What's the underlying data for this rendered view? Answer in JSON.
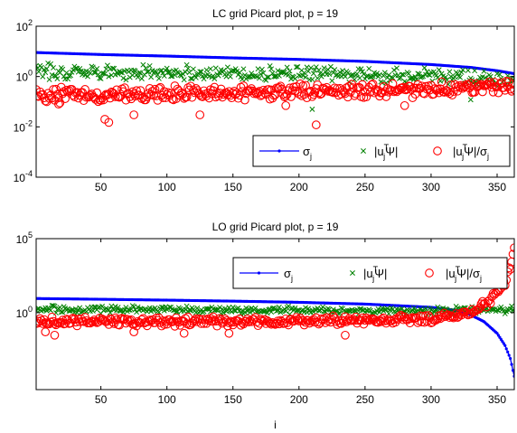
{
  "chart_data": [
    {
      "type": "scatter",
      "title": "LC grid Picard plot, p = 19",
      "xlabel": "",
      "ylabel": "",
      "yscale": "log",
      "xlim": [
        1,
        363
      ],
      "ylim": [
        0.0001,
        100
      ],
      "x_ticks": [
        50,
        100,
        150,
        200,
        250,
        300,
        350
      ],
      "y_ticks": [
        {
          "value": 0.0001,
          "base": "10",
          "exp": "-4"
        },
        {
          "value": 0.01,
          "base": "10",
          "exp": "-2"
        },
        {
          "value": 1,
          "base": "10",
          "exp": "0"
        },
        {
          "value": 100,
          "base": "10",
          "exp": "2"
        }
      ],
      "legend_position": "lower-right",
      "series": [
        {
          "name": "σj",
          "label_main": "σ",
          "label_sub": "j",
          "color": "#0000ff",
          "marker": "dot-line",
          "curve": [
            [
              1,
              9.0
            ],
            [
              50,
              7.5
            ],
            [
              100,
              6.5
            ],
            [
              150,
              5.5
            ],
            [
              200,
              4.8
            ],
            [
              250,
              4.0
            ],
            [
              300,
              3.0
            ],
            [
              330,
              2.3
            ],
            [
              350,
              1.7
            ],
            [
              363,
              1.3
            ]
          ]
        },
        {
          "name": "|ujTΨ|",
          "label_main": "|u",
          "label_sup": "T",
          "label_sub": "j",
          "label_tail": "Ψ|",
          "color": "#008000",
          "marker": "x",
          "band": {
            "center": [
              [
                1,
                1.6
              ],
              [
                100,
                1.5
              ],
              [
                200,
                1.3
              ],
              [
                300,
                1.0
              ],
              [
                363,
                0.7
              ]
            ],
            "spread": 0.35
          },
          "outliers": [
            [
              210,
              0.05
            ],
            [
              330,
              0.12
            ]
          ]
        },
        {
          "name": "|ujTΨ|/σj",
          "label_main": "|u",
          "label_sup": "T",
          "label_sub": "j",
          "label_tail": "Ψ|/σ",
          "label_tail_sub": "j",
          "color": "#ff0000",
          "marker": "circle",
          "band": {
            "center": [
              [
                1,
                0.18
              ],
              [
                100,
                0.2
              ],
              [
                200,
                0.25
              ],
              [
                300,
                0.3
              ],
              [
                363,
                0.45
              ]
            ],
            "spread": 0.35
          },
          "outliers": [
            [
              18,
              0.08
            ],
            [
              53,
              0.02
            ],
            [
              56,
              0.015
            ],
            [
              75,
              0.03
            ],
            [
              125,
              0.03
            ],
            [
              190,
              0.07
            ],
            [
              213,
              0.012
            ],
            [
              280,
              0.07
            ]
          ]
        }
      ]
    },
    {
      "type": "scatter",
      "title": "LO grid Picard plot, p = 19",
      "xlabel": "i",
      "ylabel": "",
      "yscale": "log",
      "xlim": [
        1,
        363
      ],
      "ylim": [
        6.3e-06,
        100000
      ],
      "x_ticks": [
        50,
        100,
        150,
        200,
        250,
        300,
        350
      ],
      "y_ticks": [
        {
          "value": 1,
          "base": "10",
          "exp": "0"
        },
        {
          "value": 100000,
          "base": "10",
          "exp": "5"
        }
      ],
      "legend_position": "top-right",
      "series": [
        {
          "name": "σj",
          "label_main": "σ",
          "label_sub": "j",
          "color": "#0000ff",
          "marker": "dot-line",
          "curve": [
            [
              1,
              9.0
            ],
            [
              50,
              8.0
            ],
            [
              100,
              7.0
            ],
            [
              150,
              6.0
            ],
            [
              200,
              5.0
            ],
            [
              250,
              3.8
            ],
            [
              300,
              2.3
            ],
            [
              320,
              1.4
            ],
            [
              330,
              0.7
            ],
            [
              340,
              0.25
            ],
            [
              350,
              0.04
            ],
            [
              356,
              0.006
            ],
            [
              360,
              0.0008
            ],
            [
              363,
              5e-05
            ]
          ]
        },
        {
          "name": "|ujTΨ|",
          "label_main": "|u",
          "label_sup": "T",
          "label_sub": "j",
          "label_tail": "Ψ|",
          "color": "#008000",
          "marker": "x",
          "band": {
            "center": [
              [
                1,
                1.7
              ],
              [
                100,
                1.6
              ],
              [
                200,
                1.4
              ],
              [
                300,
                1.3
              ],
              [
                363,
                1.6
              ]
            ],
            "spread": 0.3
          },
          "outliers": []
        },
        {
          "name": "|ujTΨ|/σj",
          "label_main": "|u",
          "label_sup": "T",
          "label_sub": "j",
          "label_tail": "Ψ|/σ",
          "label_tail_sub": "j",
          "color": "#ff0000",
          "marker": "circle",
          "band": {
            "center": [
              [
                1,
                0.25
              ],
              [
                100,
                0.24
              ],
              [
                200,
                0.27
              ],
              [
                300,
                0.35
              ],
              [
                320,
                0.6
              ],
              [
                335,
                1.5
              ],
              [
                345,
                8
              ],
              [
                355,
                80
              ],
              [
                360,
                1000
              ],
              [
                363,
                25000
              ]
            ],
            "spread": 0.35
          },
          "outliers": [
            [
              8,
              0.05
            ],
            [
              15,
              0.03
            ],
            [
              75,
              0.05
            ],
            [
              113,
              0.04
            ],
            [
              147,
              0.04
            ],
            [
              235,
              0.03
            ]
          ]
        }
      ]
    }
  ]
}
